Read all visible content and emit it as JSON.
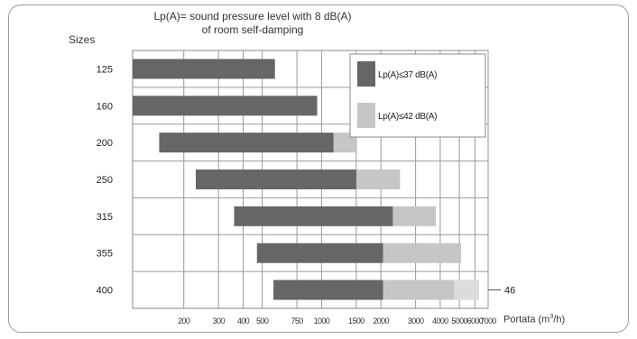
{
  "chart_data": {
    "type": "bar",
    "orientation": "horizontal",
    "stacked_ranges": true,
    "title_line1": "Lp(A)= sound pressure level with 8 dB(A)",
    "title_line2": "of room self-damping",
    "ylabel": "Sizes",
    "xlabel_prefix": "Portata (m",
    "xlabel_sup": "3",
    "xlabel_suffix": "/h)",
    "xscale": "log",
    "xlim": [
      110,
      7000
    ],
    "x_ticks": [
      {
        "value": 200,
        "label": "200"
      },
      {
        "value": 300,
        "label": "300"
      },
      {
        "value": 400,
        "label": "400"
      },
      {
        "value": 500,
        "label": "500"
      },
      {
        "value": 750,
        "label": "750"
      },
      {
        "value": 1000,
        "label": "1000"
      },
      {
        "value": 1500,
        "label": "1500"
      },
      {
        "value": 2000,
        "label": "2000"
      },
      {
        "value": 3000,
        "label": "3000"
      },
      {
        "value": 4000,
        "label": "4000"
      },
      {
        "value": 5000,
        "label": "5000"
      },
      {
        "value": 6000,
        "label": "6000"
      },
      {
        "value": 7000,
        "label": "7000"
      }
    ],
    "grid": true,
    "categories": [
      "125",
      "160",
      "200",
      "250",
      "315",
      "355",
      "400"
    ],
    "series": [
      {
        "name": "Lp(A)≤37 dB(A)",
        "color": "#666666",
        "ranges": [
          [
            110,
            580
          ],
          [
            110,
            950
          ],
          [
            150,
            1150
          ],
          [
            230,
            1500
          ],
          [
            360,
            2300
          ],
          [
            470,
            2050
          ],
          [
            570,
            2050
          ]
        ]
      },
      {
        "name": "Lp(A)≤42 dB(A)",
        "color": "#c6c6c6",
        "ranges": [
          null,
          null,
          [
            1150,
            1500
          ],
          [
            1500,
            2500
          ],
          [
            2300,
            3800
          ],
          [
            2050,
            5100
          ],
          [
            2050,
            6300
          ]
        ]
      }
    ],
    "extra_segment": {
      "category": "400",
      "range": [
        4700,
        6300
      ],
      "color": "#dcdcdc"
    },
    "annotation": {
      "category": "400",
      "text": "46"
    },
    "legend_position": "top-right"
  }
}
